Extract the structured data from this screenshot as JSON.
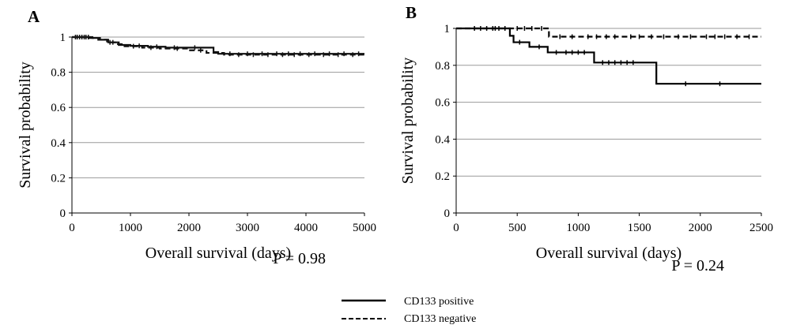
{
  "legend": {
    "positive_label": "CD133  positive",
    "negative_label": "CD133  negative"
  },
  "chart_data": [
    {
      "type": "line",
      "chart_subtype": "kaplan-meier",
      "panel_label": "A",
      "title": "",
      "xlabel": "Overall survival (days)",
      "ylabel": "Survival probability",
      "xlim": [
        0,
        5000
      ],
      "ylim": [
        0,
        1
      ],
      "xticks": [
        0,
        1000,
        2000,
        3000,
        4000,
        5000
      ],
      "yticks": [
        0,
        0.2,
        0.4,
        0.6,
        0.8,
        1
      ],
      "ytick_labels": [
        "0",
        "0.2",
        "0.4",
        "0.6",
        "0.8",
        "1"
      ],
      "grid": "horizontal",
      "annotation": "P = 0.98",
      "series": [
        {
          "name": "CD133  positive",
          "style": "solid",
          "color": "#111111",
          "x": [
            0,
            350,
            480,
            620,
            800,
            1000,
            1300,
            1600,
            2420,
            2500,
            5000
          ],
          "y": [
            1.0,
            0.995,
            0.985,
            0.97,
            0.955,
            0.95,
            0.945,
            0.94,
            0.915,
            0.905,
            0.905
          ],
          "censor_x": [
            60,
            130,
            210,
            280,
            700,
            1150,
            1450,
            1750,
            2100,
            2700,
            3000,
            3250,
            3500,
            3700,
            3900,
            4150,
            4400,
            4650,
            4900
          ]
        },
        {
          "name": "CD133  negative",
          "style": "dashed",
          "color": "#111111",
          "x": [
            0,
            300,
            450,
            600,
            750,
            900,
            1200,
            1500,
            2000,
            2300,
            2600,
            5000
          ],
          "y": [
            1.0,
            0.995,
            0.985,
            0.97,
            0.96,
            0.948,
            0.94,
            0.935,
            0.925,
            0.91,
            0.9,
            0.9
          ],
          "censor_x": [
            90,
            170,
            240,
            650,
            1050,
            1350,
            1800,
            2200,
            2850,
            3100,
            3350,
            3600,
            3800,
            4050,
            4300,
            4550,
            4800
          ]
        }
      ]
    },
    {
      "type": "line",
      "chart_subtype": "kaplan-meier",
      "panel_label": "B",
      "title": "",
      "xlabel": "Overall survival (days)",
      "ylabel": "Survival probability",
      "xlim": [
        0,
        2500
      ],
      "ylim": [
        0,
        1
      ],
      "xticks": [
        0,
        500,
        1000,
        1500,
        2000,
        2500
      ],
      "yticks": [
        0,
        0.2,
        0.4,
        0.6,
        0.8,
        1
      ],
      "ytick_labels": [
        "0",
        "0.2",
        "0.4",
        "0.6",
        "0.8",
        "1"
      ],
      "grid": "horizontal",
      "annotation": "P = 0.24",
      "series": [
        {
          "name": "CD133  positive",
          "style": "solid",
          "color": "#000000",
          "x": [
            0,
            440,
            470,
            600,
            750,
            1130,
            1640,
            2500
          ],
          "y": [
            1.0,
            0.96,
            0.925,
            0.9,
            0.87,
            0.815,
            0.7,
            0.7
          ],
          "censor_x": [
            200,
            300,
            350,
            520,
            680,
            820,
            900,
            950,
            1000,
            1050,
            1200,
            1250,
            1300,
            1350,
            1400,
            1450,
            1880,
            2160
          ]
        },
        {
          "name": "CD133  negative",
          "style": "dashed",
          "color": "#000000",
          "x": [
            0,
            760,
            2500
          ],
          "y": [
            1.0,
            0.955,
            0.955
          ],
          "censor_x": [
            150,
            250,
            320,
            400,
            500,
            560,
            620,
            700,
            850,
            950,
            1080,
            1150,
            1230,
            1300,
            1430,
            1500,
            1600,
            1700,
            1820,
            1920,
            2050,
            2120,
            2200,
            2300,
            2400
          ]
        }
      ]
    }
  ]
}
